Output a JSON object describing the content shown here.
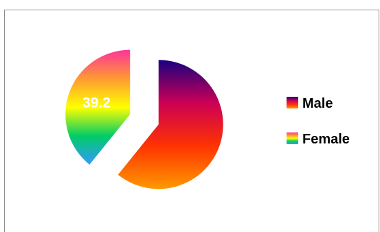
{
  "chart_data": {
    "type": "pie",
    "categories": [
      "Male",
      "Female"
    ],
    "values": [
      60.8,
      39.2
    ],
    "data_labels": [
      "",
      "39.2"
    ],
    "title": "",
    "legend": {
      "placement": "right",
      "items": [
        "Male",
        "Female"
      ]
    },
    "exploded": true,
    "colors": {
      "Male": [
        "#1a0080",
        "#cc0055",
        "#ff3300",
        "#ff9900"
      ],
      "Female": [
        "#ff3399",
        "#ff9933",
        "#ffff00",
        "#00cc66",
        "#3399ff"
      ]
    }
  }
}
